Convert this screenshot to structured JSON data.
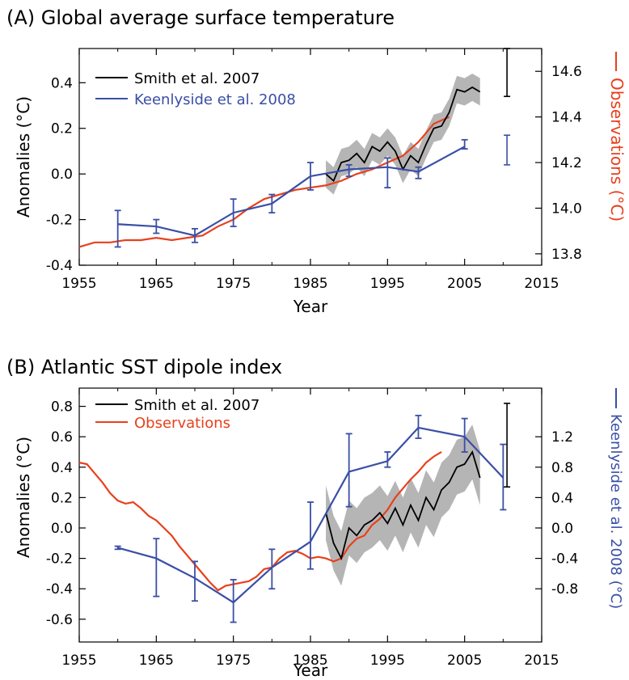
{
  "panels": [
    {
      "title": "(A) Global average surface temperature",
      "chart_data": {
        "type": "line",
        "xlabel": "Year",
        "ylabel": "Anomalies (°C)",
        "xlim": [
          1955,
          2015
        ],
        "xticks": [
          "1955",
          "1965",
          "1975",
          "1985",
          "1995",
          "2005",
          "2015"
        ],
        "ylim": [
          -0.4,
          0.55
        ],
        "yticks": [
          "-0.4",
          "-0.2",
          "0.0",
          "0.2",
          "0.4"
        ],
        "y2label": "Observations (°C)",
        "y2ticks": [
          "13.8",
          "14.0",
          "14.2",
          "14.4",
          "14.6"
        ],
        "y2offset": 14.15,
        "legend_position": "top-left",
        "legend": [
          "Smith et al. 2007",
          "Keenlyside et al. 2008"
        ],
        "colors": {
          "smith": "#000000",
          "keenlyside": "#3a4fa6",
          "observations": "#e8401c",
          "spread": "#b5b5b5"
        },
        "series": [
          {
            "name": "Observations",
            "x": [
              1955,
              1957,
              1959,
              1961,
              1963,
              1965,
              1967,
              1969,
              1971,
              1973,
              1975,
              1977,
              1979,
              1981,
              1983,
              1985,
              1987,
              1989,
              1991,
              1993,
              1995,
              1997,
              1999,
              2001,
              2003
            ],
            "y": [
              -0.32,
              -0.3,
              -0.3,
              -0.29,
              -0.29,
              -0.28,
              -0.29,
              -0.28,
              -0.27,
              -0.23,
              -0.2,
              -0.15,
              -0.11,
              -0.09,
              -0.07,
              -0.06,
              -0.05,
              -0.03,
              0.0,
              0.02,
              0.05,
              0.08,
              0.14,
              0.22,
              0.25
            ]
          },
          {
            "name": "Smith et al. 2007",
            "x": [
              1987,
              1988,
              1989,
              1990,
              1991,
              1992,
              1993,
              1994,
              1995,
              1996,
              1997,
              1998,
              1999,
              2000,
              2001,
              2002,
              2003,
              2004,
              2005,
              2006,
              2007
            ],
            "y": [
              0.0,
              -0.03,
              0.05,
              0.06,
              0.09,
              0.05,
              0.12,
              0.1,
              0.14,
              0.1,
              0.02,
              0.08,
              0.05,
              0.13,
              0.2,
              0.21,
              0.27,
              0.37,
              0.36,
              0.38,
              0.36
            ],
            "spread": 0.06
          },
          {
            "name": "Keenlyside et al. 2008",
            "x": [
              1960,
              1965,
              1970,
              1975,
              1980,
              1985,
              1990,
              1995,
              1999,
              2005
            ],
            "y": [
              -0.22,
              -0.23,
              -0.27,
              -0.17,
              -0.13,
              -0.01,
              0.02,
              0.03,
              0.01,
              0.12
            ],
            "err_low": [
              -0.32,
              -0.26,
              -0.3,
              -0.23,
              -0.17,
              -0.07,
              -0.01,
              -0.06,
              -0.02,
              0.11
            ],
            "err_high": [
              -0.16,
              -0.2,
              -0.24,
              -0.11,
              -0.09,
              0.05,
              0.04,
              0.07,
              0.03,
              0.15
            ]
          }
        ],
        "annotations": [
          {
            "type": "errorbar",
            "color": "#000000",
            "x": 2010.5,
            "low": 0.34,
            "high": 0.55
          },
          {
            "type": "errorbar",
            "color": "#3a4fa6",
            "x": 2010.5,
            "low": 0.04,
            "high": 0.17
          }
        ]
      }
    },
    {
      "title": "(B) Atlantic SST dipole index",
      "chart_data": {
        "type": "line",
        "xlabel": "Year",
        "ylabel": "Anomalies (°C)",
        "xlim": [
          1955,
          2015
        ],
        "xticks": [
          "1955",
          "1965",
          "1975",
          "1985",
          "1995",
          "2005",
          "2015"
        ],
        "ylim": [
          -0.75,
          0.92
        ],
        "yticks": [
          "-0.6",
          "-0.4",
          "-0.2",
          "0.0",
          "0.2",
          "0.4",
          "0.6",
          "0.8"
        ],
        "y2label": "Keenlyside et al. 2008 (°C)",
        "y2ticks": [
          "-0.8",
          "-0.4",
          "0.0",
          "0.4",
          "0.8",
          "1.2"
        ],
        "y2scale": 0.5,
        "legend_position": "top-left",
        "legend": [
          "Smith et al. 2007",
          "Observations"
        ],
        "colors": {
          "smith": "#000000",
          "keenlyside": "#3a4fa6",
          "observations": "#e8401c",
          "spread": "#b5b5b5"
        },
        "series": [
          {
            "name": "Observations",
            "x": [
              1955,
              1956,
              1957,
              1958,
              1959,
              1960,
              1961,
              1962,
              1963,
              1964,
              1965,
              1966,
              1967,
              1968,
              1969,
              1970,
              1971,
              1972,
              1973,
              1974,
              1975,
              1976,
              1977,
              1978,
              1979,
              1980,
              1981,
              1982,
              1983,
              1984,
              1985,
              1986,
              1987,
              1988,
              1989,
              1990,
              1991,
              1992,
              1993,
              1994,
              1995,
              1996,
              1997,
              1998,
              1999,
              2000,
              2001,
              2002
            ],
            "y": [
              0.43,
              0.42,
              0.36,
              0.3,
              0.23,
              0.18,
              0.16,
              0.17,
              0.13,
              0.08,
              0.05,
              0.0,
              -0.05,
              -0.12,
              -0.18,
              -0.24,
              -0.3,
              -0.36,
              -0.41,
              -0.38,
              -0.37,
              -0.36,
              -0.35,
              -0.32,
              -0.27,
              -0.26,
              -0.2,
              -0.16,
              -0.15,
              -0.17,
              -0.2,
              -0.19,
              -0.2,
              -0.22,
              -0.2,
              -0.12,
              -0.07,
              -0.05,
              0.02,
              0.06,
              0.12,
              0.2,
              0.26,
              0.32,
              0.37,
              0.43,
              0.47,
              0.5
            ]
          },
          {
            "name": "Smith et al. 2007",
            "x": [
              1987,
              1988,
              1989,
              1990,
              1991,
              1992,
              1993,
              1994,
              1995,
              1996,
              1997,
              1998,
              1999,
              2000,
              2001,
              2002,
              2003,
              2004,
              2005,
              2006,
              2007
            ],
            "y": [
              0.1,
              -0.1,
              -0.2,
              0.0,
              -0.05,
              0.02,
              0.05,
              0.1,
              0.03,
              0.13,
              0.02,
              0.15,
              0.05,
              0.2,
              0.12,
              0.25,
              0.3,
              0.4,
              0.42,
              0.5,
              0.33
            ],
            "spread": 0.18
          },
          {
            "name": "Keenlyside et al. 2008",
            "x": [
              1960,
              1965,
              1970,
              1975,
              1980,
              1985,
              1990,
              1995,
              1999,
              2005,
              2010
            ],
            "y": [
              -0.13,
              -0.2,
              -0.33,
              -0.49,
              -0.26,
              -0.09,
              0.37,
              0.44,
              0.66,
              0.6,
              0.33
            ],
            "err_low": [
              -0.14,
              -0.45,
              -0.48,
              -0.62,
              -0.4,
              -0.27,
              0.14,
              0.4,
              0.59,
              0.5,
              0.12
            ],
            "err_high": [
              -0.12,
              -0.07,
              -0.22,
              -0.34,
              -0.14,
              0.17,
              0.62,
              0.5,
              0.74,
              0.72,
              0.55
            ]
          }
        ],
        "annotations": [
          {
            "type": "errorbar",
            "color": "#000000",
            "x": 2010.5,
            "low": 0.27,
            "high": 0.82
          }
        ]
      }
    }
  ]
}
